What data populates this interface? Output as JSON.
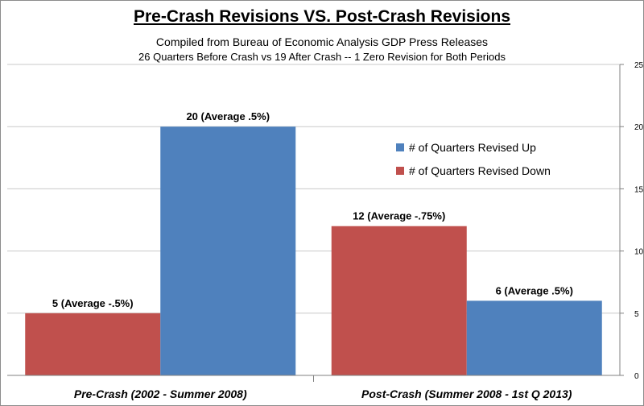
{
  "chart_data": {
    "type": "bar",
    "title": "Pre-Crash Revisions VS. Post-Crash Revisions",
    "subtitle": "Compiled from Bureau of Economic Analysis GDP Press Releases",
    "subtitle2": "26 Quarters Before Crash vs 19 After Crash -- 1 Zero Revision for Both Periods",
    "categories": [
      "Pre-Crash (2002 - Summer 2008)",
      "Post-Crash (Summer 2008 - 1st Q 2013)"
    ],
    "series": [
      {
        "name": "# of Quarters Revised Down",
        "color": "#c0504d",
        "values": [
          5,
          12
        ],
        "labels": [
          "5 (Average -.5%)",
          "12 (Average -.75%)"
        ]
      },
      {
        "name": "# of Quarters Revised Up",
        "color": "#4f81bd",
        "values": [
          20,
          6
        ],
        "labels": [
          "20 (Average .5%)",
          "6 (Average .5%)"
        ]
      }
    ],
    "legend": {
      "placement": "top-right",
      "entries": [
        "# of Quarters Revised Up",
        "# of Quarters Revised Down"
      ]
    },
    "yaxis": {
      "side": "right",
      "ticks": [
        "0",
        "5",
        "10",
        "15",
        "20",
        "25"
      ]
    },
    "ylim": [
      0,
      25
    ],
    "grid": true
  }
}
